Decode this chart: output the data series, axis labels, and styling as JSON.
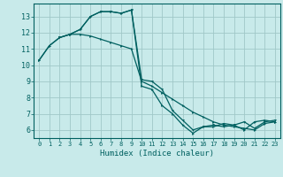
{
  "xlabel": "Humidex (Indice chaleur)",
  "ylabel": "",
  "bg_color": "#c8eaea",
  "grid_color": "#a0c8c8",
  "line_color": "#006060",
  "xlim": [
    -0.5,
    23.5
  ],
  "ylim": [
    5.5,
    13.8
  ],
  "xticks": [
    0,
    1,
    2,
    3,
    4,
    5,
    6,
    7,
    8,
    9,
    10,
    11,
    12,
    13,
    14,
    15,
    16,
    17,
    18,
    19,
    20,
    21,
    22,
    23
  ],
  "yticks": [
    6,
    7,
    8,
    9,
    10,
    11,
    12,
    13
  ],
  "line1_x": [
    0,
    1,
    2,
    3,
    4,
    5,
    6,
    7,
    8,
    9,
    10,
    11,
    12,
    13,
    14,
    15,
    16,
    17,
    18,
    19,
    20,
    21,
    22,
    23
  ],
  "line1_y": [
    10.3,
    11.2,
    11.7,
    11.9,
    12.2,
    13.0,
    13.3,
    13.3,
    13.2,
    13.4,
    8.7,
    8.5,
    7.5,
    7.0,
    6.3,
    5.8,
    6.2,
    6.2,
    6.4,
    6.3,
    6.0,
    6.5,
    6.6,
    6.5
  ],
  "line2_x": [
    0,
    1,
    2,
    3,
    4,
    5,
    6,
    7,
    8,
    9,
    10,
    11,
    12,
    13,
    14,
    15,
    16,
    17,
    18,
    19,
    20,
    21,
    22,
    23
  ],
  "line2_y": [
    10.3,
    11.2,
    11.7,
    11.9,
    11.9,
    11.8,
    11.6,
    11.4,
    11.2,
    11.0,
    9.0,
    8.7,
    8.3,
    7.9,
    7.5,
    7.1,
    6.8,
    6.5,
    6.3,
    6.2,
    6.1,
    6.0,
    6.4,
    6.5
  ],
  "line3_x": [
    2,
    3,
    4,
    5,
    6,
    7,
    8,
    9,
    10,
    11,
    12,
    13,
    14,
    15,
    16,
    17,
    18,
    19,
    20,
    21,
    22,
    23
  ],
  "line3_y": [
    11.7,
    11.9,
    12.2,
    13.0,
    13.3,
    13.3,
    13.2,
    13.4,
    9.1,
    9.0,
    8.5,
    7.2,
    6.6,
    6.0,
    6.2,
    6.3,
    6.2,
    6.3,
    6.5,
    6.1,
    6.5,
    6.6
  ]
}
